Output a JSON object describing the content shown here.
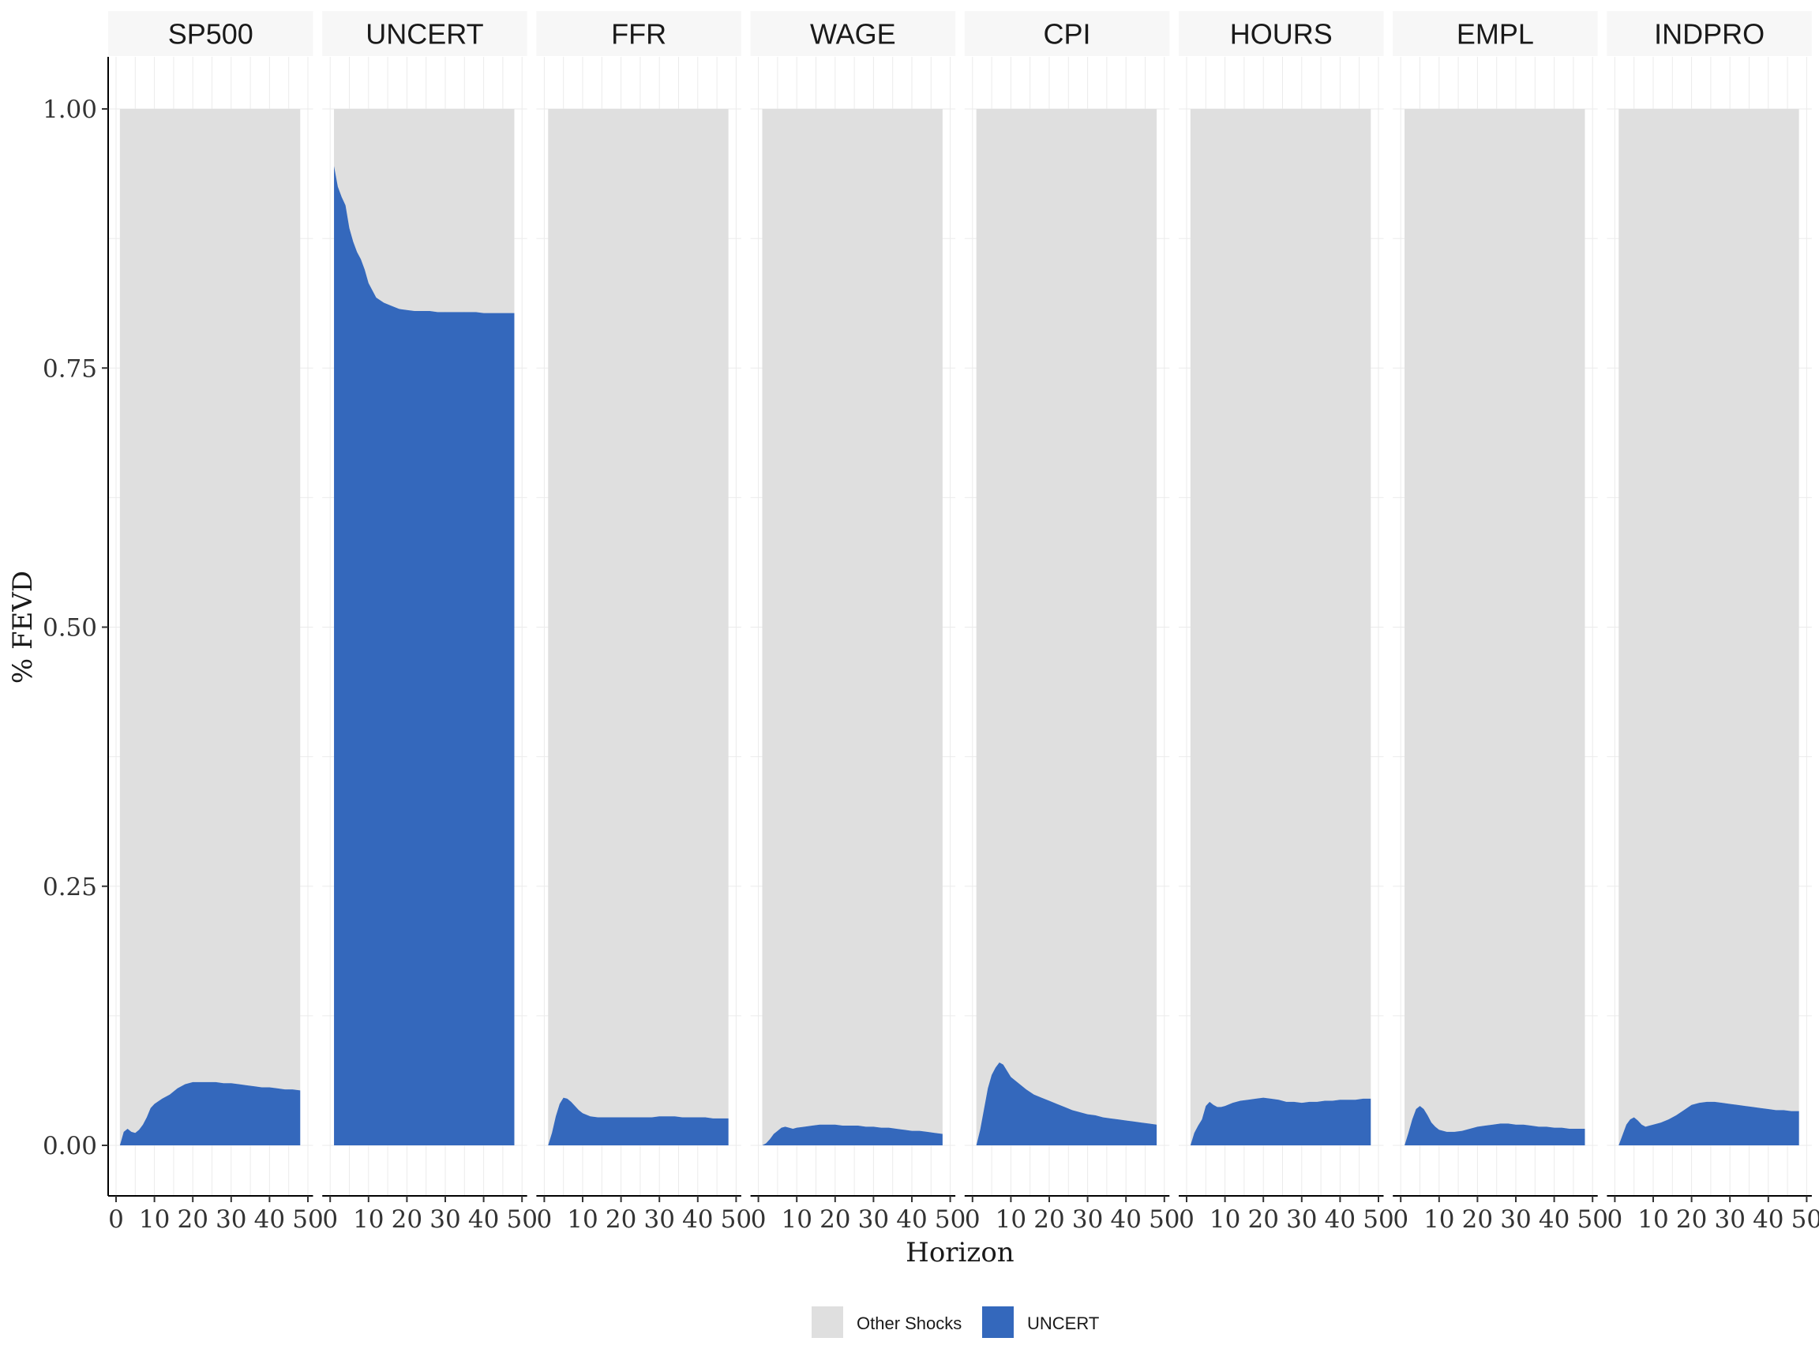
{
  "chart_data": {
    "type": "area",
    "xlabel": "Horizon",
    "ylabel": "% FEVD",
    "xlim": [
      0,
      50
    ],
    "ylim": [
      0,
      1
    ],
    "x_ticks": [
      "0",
      "10",
      "20",
      "30",
      "40",
      "50"
    ],
    "y_ticks": [
      "0.00",
      "0.25",
      "0.50",
      "0.75",
      "1.00"
    ],
    "legend": {
      "position": "bottom",
      "entries": [
        {
          "label": "Other Shocks",
          "color": "#dfdfdf"
        },
        {
          "label": "UNCERT",
          "color": "#3468bc"
        }
      ]
    },
    "colors": {
      "other": "#dfdfdf",
      "uncert": "#3468bc"
    },
    "x": [
      1,
      2,
      3,
      4,
      5,
      6,
      7,
      8,
      9,
      10,
      12,
      14,
      16,
      18,
      20,
      22,
      24,
      26,
      28,
      30,
      32,
      34,
      36,
      38,
      40,
      42,
      44,
      46,
      48
    ],
    "panels": [
      {
        "name": "SP500",
        "uncert": [
          0.0,
          0.013,
          0.016,
          0.013,
          0.012,
          0.015,
          0.02,
          0.027,
          0.036,
          0.04,
          0.045,
          0.049,
          0.055,
          0.059,
          0.061,
          0.061,
          0.061,
          0.061,
          0.06,
          0.06,
          0.059,
          0.058,
          0.057,
          0.056,
          0.056,
          0.055,
          0.054,
          0.054,
          0.053
        ]
      },
      {
        "name": "UNCERT",
        "uncert": [
          0.945,
          0.925,
          0.915,
          0.907,
          0.885,
          0.872,
          0.862,
          0.855,
          0.845,
          0.832,
          0.818,
          0.813,
          0.81,
          0.807,
          0.806,
          0.805,
          0.805,
          0.805,
          0.804,
          0.804,
          0.804,
          0.804,
          0.804,
          0.804,
          0.803,
          0.803,
          0.803,
          0.803,
          0.803
        ]
      },
      {
        "name": "FFR",
        "uncert": [
          0.0,
          0.012,
          0.028,
          0.04,
          0.046,
          0.045,
          0.042,
          0.038,
          0.034,
          0.031,
          0.028,
          0.027,
          0.027,
          0.027,
          0.027,
          0.027,
          0.027,
          0.027,
          0.027,
          0.028,
          0.028,
          0.028,
          0.027,
          0.027,
          0.027,
          0.027,
          0.026,
          0.026,
          0.026
        ]
      },
      {
        "name": "WAGE",
        "uncert": [
          0.0,
          0.002,
          0.006,
          0.011,
          0.014,
          0.017,
          0.018,
          0.017,
          0.016,
          0.017,
          0.018,
          0.019,
          0.02,
          0.02,
          0.02,
          0.019,
          0.019,
          0.019,
          0.018,
          0.018,
          0.017,
          0.017,
          0.016,
          0.015,
          0.014,
          0.014,
          0.013,
          0.012,
          0.011
        ]
      },
      {
        "name": "CPI",
        "uncert": [
          0.0,
          0.015,
          0.035,
          0.055,
          0.068,
          0.075,
          0.08,
          0.078,
          0.072,
          0.066,
          0.06,
          0.054,
          0.049,
          0.046,
          0.043,
          0.04,
          0.037,
          0.034,
          0.032,
          0.03,
          0.029,
          0.027,
          0.026,
          0.025,
          0.024,
          0.023,
          0.022,
          0.021,
          0.02
        ]
      },
      {
        "name": "HOURS",
        "uncert": [
          0.0,
          0.012,
          0.019,
          0.025,
          0.038,
          0.042,
          0.039,
          0.037,
          0.037,
          0.038,
          0.041,
          0.043,
          0.044,
          0.045,
          0.046,
          0.045,
          0.044,
          0.042,
          0.042,
          0.041,
          0.042,
          0.042,
          0.043,
          0.043,
          0.044,
          0.044,
          0.044,
          0.045,
          0.045
        ]
      },
      {
        "name": "EMPL",
        "uncert": [
          0.0,
          0.012,
          0.025,
          0.035,
          0.038,
          0.035,
          0.029,
          0.022,
          0.018,
          0.015,
          0.013,
          0.013,
          0.014,
          0.016,
          0.018,
          0.019,
          0.02,
          0.021,
          0.021,
          0.02,
          0.02,
          0.019,
          0.018,
          0.018,
          0.017,
          0.017,
          0.016,
          0.016,
          0.016
        ]
      },
      {
        "name": "INDPRO",
        "uncert": [
          0.0,
          0.01,
          0.02,
          0.025,
          0.027,
          0.024,
          0.02,
          0.018,
          0.019,
          0.02,
          0.022,
          0.025,
          0.029,
          0.034,
          0.039,
          0.041,
          0.042,
          0.042,
          0.041,
          0.04,
          0.039,
          0.038,
          0.037,
          0.036,
          0.035,
          0.034,
          0.034,
          0.033,
          0.033
        ]
      }
    ]
  }
}
